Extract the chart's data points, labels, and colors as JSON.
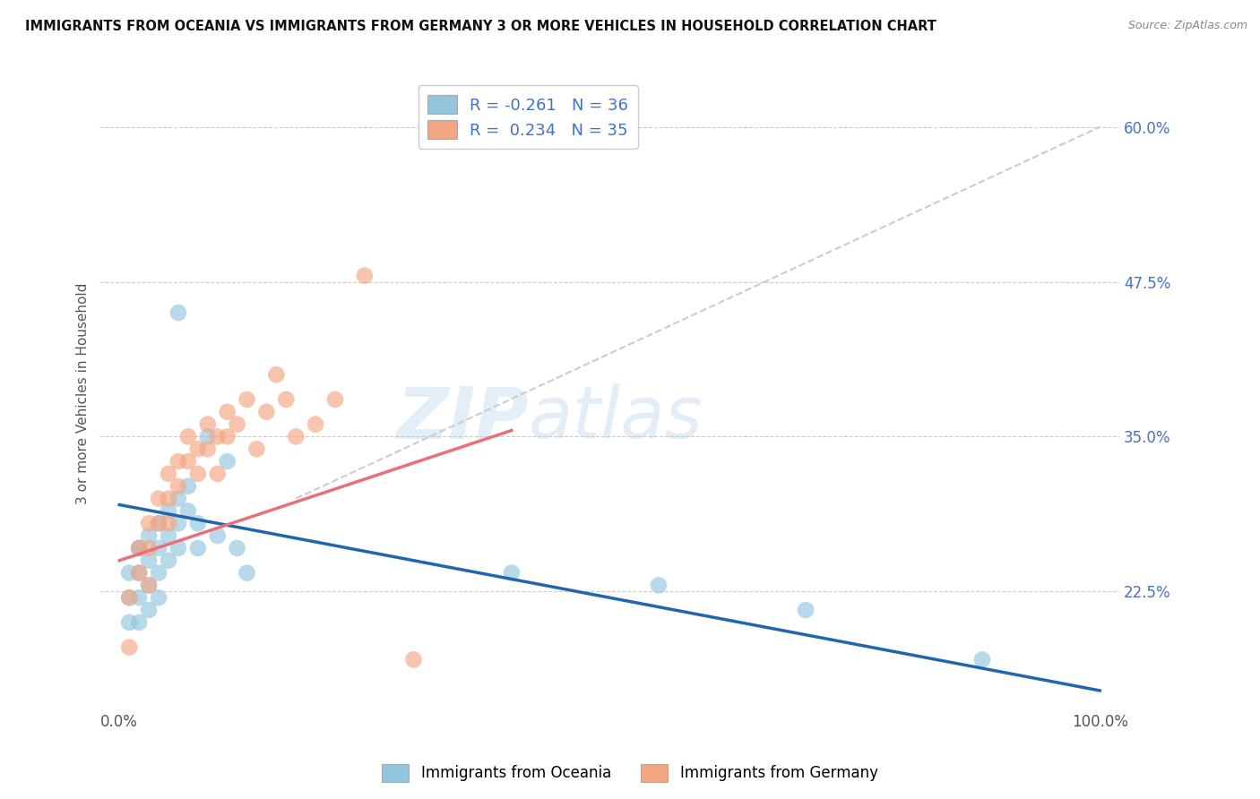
{
  "title": "IMMIGRANTS FROM OCEANIA VS IMMIGRANTS FROM GERMANY 3 OR MORE VEHICLES IN HOUSEHOLD CORRELATION CHART",
  "source": "Source: ZipAtlas.com",
  "ylabel": "3 or more Vehicles in Household",
  "xlim": [
    -2.0,
    102.0
  ],
  "ylim": [
    13.0,
    64.0
  ],
  "yticks": [
    22.5,
    35.0,
    47.5,
    60.0
  ],
  "ytick_labels": [
    "22.5%",
    "35.0%",
    "47.5%",
    "60.0%"
  ],
  "xticks": [
    0.0,
    100.0
  ],
  "xtick_labels": [
    "0.0%",
    "100.0%"
  ],
  "legend_r1": "R = -0.261   N = 36",
  "legend_r2": "R =  0.234   N = 35",
  "color_oceania": "#92c5de",
  "color_germany": "#f4a582",
  "line_color_oceania": "#2166ac",
  "line_color_germany": "#e8707a",
  "watermark_zip": "ZIP",
  "watermark_atlas": "atlas",
  "oceania_x": [
    1,
    1,
    1,
    2,
    2,
    2,
    2,
    2,
    3,
    3,
    3,
    3,
    4,
    4,
    4,
    4,
    5,
    5,
    5,
    6,
    6,
    6,
    7,
    7,
    8,
    8,
    9,
    10,
    11,
    12,
    13,
    40,
    55,
    70,
    88,
    6
  ],
  "oceania_y": [
    20,
    22,
    24,
    26,
    24,
    22,
    20,
    26,
    27,
    25,
    23,
    21,
    28,
    26,
    24,
    22,
    29,
    27,
    25,
    30,
    28,
    26,
    31,
    29,
    28,
    26,
    35,
    27,
    33,
    26,
    24,
    24,
    23,
    21,
    17,
    45
  ],
  "germany_x": [
    1,
    1,
    2,
    2,
    3,
    3,
    3,
    4,
    4,
    5,
    5,
    5,
    6,
    6,
    7,
    7,
    8,
    8,
    9,
    9,
    10,
    10,
    11,
    11,
    12,
    13,
    14,
    15,
    16,
    17,
    18,
    20,
    22,
    25,
    30
  ],
  "germany_y": [
    22,
    18,
    26,
    24,
    28,
    26,
    23,
    30,
    28,
    32,
    30,
    28,
    33,
    31,
    35,
    33,
    34,
    32,
    36,
    34,
    35,
    32,
    37,
    35,
    36,
    38,
    34,
    37,
    40,
    38,
    35,
    36,
    38,
    48,
    17
  ],
  "blue_line_x": [
    0,
    100
  ],
  "blue_line_y": [
    29.5,
    14.5
  ],
  "pink_line_x": [
    0,
    40
  ],
  "pink_line_y": [
    25.0,
    35.5
  ],
  "dash_line_x": [
    18,
    100
  ],
  "dash_line_y": [
    30,
    60
  ]
}
